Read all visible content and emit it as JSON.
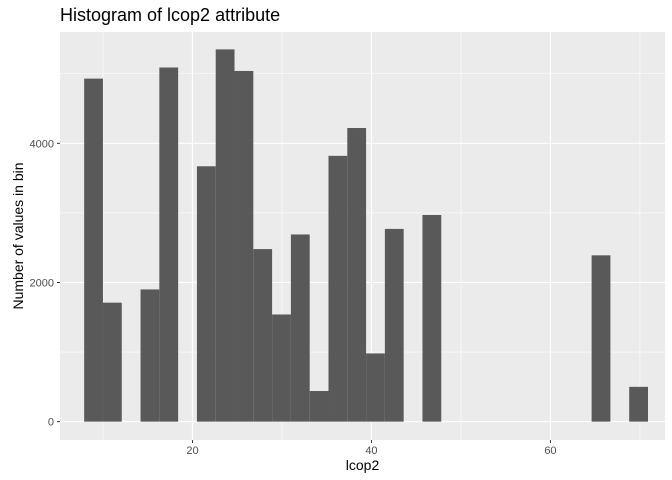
{
  "chart_data": {
    "type": "bar",
    "title": "Histogram of lcop2 attribute",
    "xlabel": "lcop2",
    "ylabel": "Number of values in bin",
    "xlim": [
      5.2,
      72.8
    ],
    "ylim": [
      -264,
      5600
    ],
    "x_ticks": [
      20,
      40,
      60
    ],
    "y_ticks": [
      0,
      2000,
      4000
    ],
    "grid": true,
    "bin_width": 2.1,
    "bins": [
      {
        "x": 8.95,
        "count": 4930
      },
      {
        "x": 11.05,
        "count": 1710
      },
      {
        "x": 13.15,
        "count": 0
      },
      {
        "x": 15.25,
        "count": 1900
      },
      {
        "x": 17.35,
        "count": 5090
      },
      {
        "x": 19.45,
        "count": 0
      },
      {
        "x": 21.55,
        "count": 3670
      },
      {
        "x": 23.65,
        "count": 5350
      },
      {
        "x": 25.75,
        "count": 5040
      },
      {
        "x": 27.85,
        "count": 2480
      },
      {
        "x": 29.95,
        "count": 1540
      },
      {
        "x": 32.05,
        "count": 2690
      },
      {
        "x": 34.15,
        "count": 440
      },
      {
        "x": 36.25,
        "count": 3820
      },
      {
        "x": 38.35,
        "count": 4220
      },
      {
        "x": 40.45,
        "count": 980
      },
      {
        "x": 42.55,
        "count": 2770
      },
      {
        "x": 44.65,
        "count": 0
      },
      {
        "x": 46.75,
        "count": 2970
      },
      {
        "x": 48.85,
        "count": 0
      },
      {
        "x": 50.95,
        "count": 0
      },
      {
        "x": 53.05,
        "count": 0
      },
      {
        "x": 55.15,
        "count": 0
      },
      {
        "x": 57.25,
        "count": 0
      },
      {
        "x": 59.35,
        "count": 0
      },
      {
        "x": 61.45,
        "count": 0
      },
      {
        "x": 63.55,
        "count": 0
      },
      {
        "x": 65.65,
        "count": 2390
      },
      {
        "x": 67.75,
        "count": 0
      },
      {
        "x": 69.85,
        "count": 500
      }
    ],
    "colors": {
      "panel_background": "#ebebeb",
      "grid_major": "#ffffff",
      "bar_fill": "#595959"
    }
  }
}
